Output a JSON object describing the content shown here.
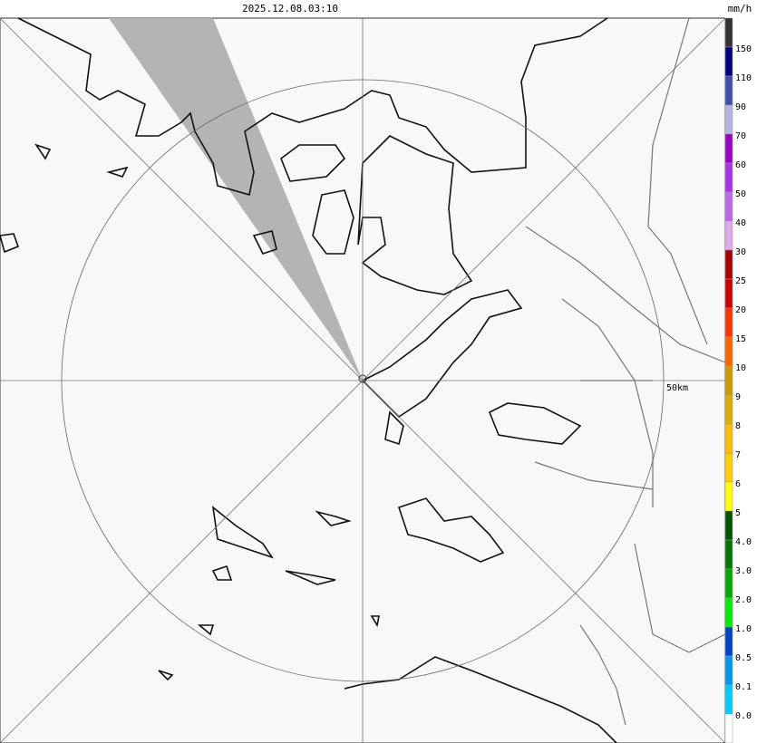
{
  "header": {
    "timestamp": "2025.12.08.03:10"
  },
  "map": {
    "range_label": "50km"
  },
  "legend": {
    "unit": "mm/h",
    "labels": [
      "150",
      "110",
      "90",
      "70",
      "60",
      "50",
      "40",
      "30",
      "25",
      "20",
      "15",
      "10",
      "9",
      "8",
      "7",
      "6",
      "5",
      "4.0",
      "3.0",
      "2.0",
      "1.0",
      "0.5",
      "0.1",
      "0.0"
    ],
    "colors": [
      "#333333",
      "#000080",
      "#4050b0",
      "#b4b4e0",
      "#9900cc",
      "#aa33ee",
      "#bb66ee",
      "#ddaaee",
      "#aa0000",
      "#cc0000",
      "#ff3300",
      "#ff6600",
      "#cc9900",
      "#ddaa00",
      "#ffbb00",
      "#ffcc00",
      "#ffff00",
      "#005500",
      "#007700",
      "#00aa00",
      "#00ee00",
      "#0044cc",
      "#0099ee",
      "#00ccff",
      "#ffffff"
    ]
  }
}
